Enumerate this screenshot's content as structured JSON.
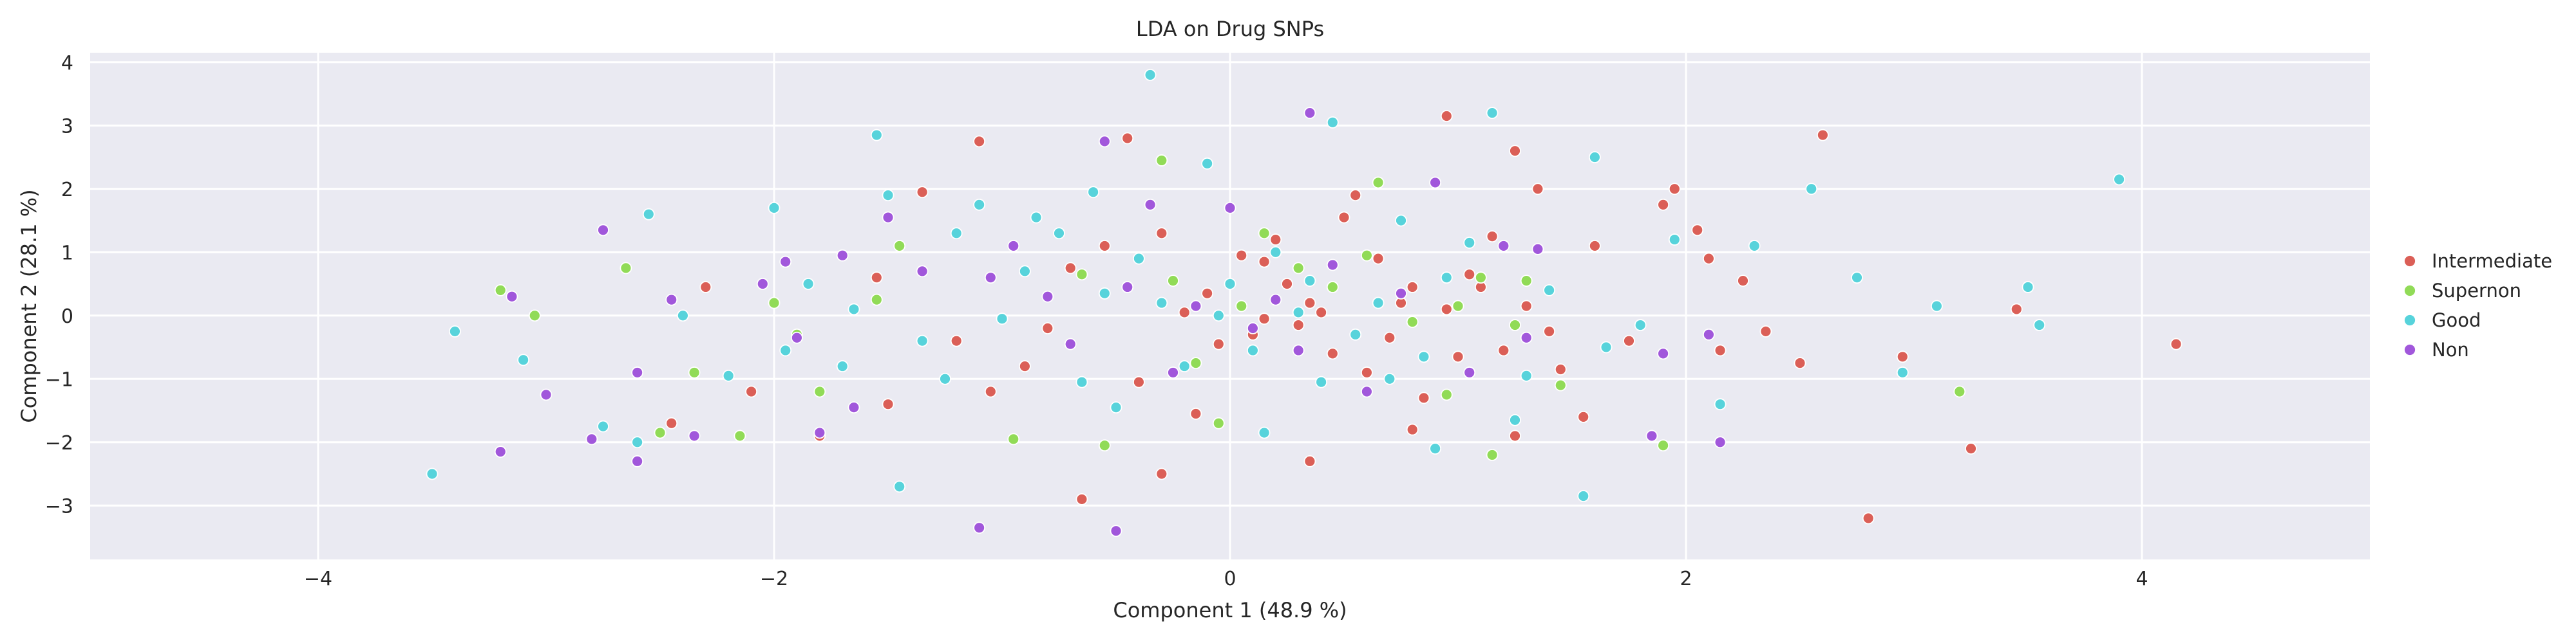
{
  "chart_data": {
    "type": "scatter",
    "title": "LDA on Drug SNPs",
    "xlabel": "Component 1 (48.9 %)",
    "ylabel": "Component 2 (28.1 %)",
    "xlim": [
      -5.0,
      5.0
    ],
    "ylim": [
      -3.85,
      4.15
    ],
    "xticks": [
      -4,
      -2,
      0,
      2,
      4
    ],
    "yticks": [
      -3,
      -2,
      -1,
      0,
      1,
      2,
      3,
      4
    ],
    "xtick_labels": [
      "−4",
      "−2",
      "0",
      "2",
      "4"
    ],
    "ytick_labels": [
      "−3",
      "−2",
      "−1",
      "0",
      "1",
      "2",
      "3",
      "4"
    ],
    "grid": true,
    "background": "#eaeaf2",
    "legend_position": "right",
    "series": [
      {
        "name": "Intermediate",
        "color": "#db5f57",
        "points": [
          [
            -1.35,
            1.95
          ],
          [
            -1.1,
            2.75
          ],
          [
            -0.45,
            2.8
          ],
          [
            -0.55,
            1.1
          ],
          [
            -0.3,
            1.3
          ],
          [
            0.05,
            0.95
          ],
          [
            0.15,
            0.85
          ],
          [
            0.25,
            0.5
          ],
          [
            0.35,
            0.2
          ],
          [
            0.4,
            0.05
          ],
          [
            0.5,
            1.55
          ],
          [
            0.65,
            0.9
          ],
          [
            0.8,
            0.45
          ],
          [
            0.95,
            0.1
          ],
          [
            1.05,
            0.65
          ],
          [
            1.15,
            1.25
          ],
          [
            1.25,
            2.6
          ],
          [
            1.35,
            2.0
          ],
          [
            1.6,
            1.1
          ],
          [
            1.9,
            1.75
          ],
          [
            1.95,
            2.0
          ],
          [
            2.05,
            1.35
          ],
          [
            2.1,
            0.9
          ],
          [
            2.25,
            0.55
          ],
          [
            2.35,
            -0.25
          ],
          [
            2.5,
            -0.75
          ],
          [
            2.6,
            2.85
          ],
          [
            2.95,
            -0.65
          ],
          [
            3.25,
            -2.1
          ],
          [
            3.45,
            0.1
          ],
          [
            4.15,
            -0.45
          ],
          [
            2.8,
            -3.2
          ],
          [
            1.55,
            -1.6
          ],
          [
            1.25,
            -1.9
          ],
          [
            0.8,
            -1.8
          ],
          [
            0.35,
            -2.3
          ],
          [
            -0.65,
            -2.9
          ],
          [
            -0.3,
            -2.5
          ],
          [
            -1.05,
            -1.2
          ],
          [
            -1.5,
            -1.4
          ],
          [
            -1.8,
            -1.9
          ],
          [
            -2.1,
            -1.2
          ],
          [
            -2.45,
            -1.7
          ],
          [
            -2.3,
            0.45
          ],
          [
            -1.55,
            0.6
          ],
          [
            -1.2,
            -0.4
          ],
          [
            -0.8,
            -0.2
          ],
          [
            -0.2,
            0.05
          ],
          [
            0.1,
            -0.3
          ],
          [
            0.45,
            -0.6
          ],
          [
            0.6,
            -0.9
          ],
          [
            0.75,
            0.2
          ],
          [
            0.95,
            3.15
          ],
          [
            0.15,
            -0.05
          ],
          [
            -0.05,
            -0.45
          ],
          [
            1.0,
            -0.65
          ],
          [
            1.1,
            0.45
          ],
          [
            1.4,
            -0.25
          ],
          [
            1.75,
            -0.4
          ],
          [
            0.55,
            1.9
          ],
          [
            -0.1,
            0.35
          ],
          [
            0.2,
            1.2
          ],
          [
            0.85,
            -1.3
          ],
          [
            -0.7,
            0.75
          ],
          [
            -0.9,
            -0.8
          ],
          [
            1.3,
            0.15
          ],
          [
            1.45,
            -0.85
          ],
          [
            0.3,
            -0.15
          ],
          [
            -0.4,
            -1.05
          ],
          [
            -0.15,
            -1.55
          ],
          [
            2.15,
            -0.55
          ],
          [
            0.7,
            -0.35
          ],
          [
            1.2,
            -0.55
          ]
        ]
      },
      {
        "name": "Supernon",
        "color": "#91db57",
        "points": [
          [
            -3.2,
            0.4
          ],
          [
            -3.05,
            0.0
          ],
          [
            -2.65,
            0.75
          ],
          [
            -2.5,
            -1.85
          ],
          [
            -2.35,
            -0.9
          ],
          [
            -2.15,
            -1.9
          ],
          [
            -2.0,
            0.2
          ],
          [
            -1.9,
            -0.3
          ],
          [
            -1.8,
            -1.2
          ],
          [
            -1.55,
            0.25
          ],
          [
            -1.45,
            1.1
          ],
          [
            -0.95,
            -1.95
          ],
          [
            -0.65,
            0.65
          ],
          [
            -0.55,
            -2.05
          ],
          [
            -0.3,
            2.45
          ],
          [
            -0.25,
            0.55
          ],
          [
            -0.05,
            -1.7
          ],
          [
            0.05,
            0.15
          ],
          [
            0.3,
            0.75
          ],
          [
            0.45,
            0.45
          ],
          [
            0.65,
            2.1
          ],
          [
            0.8,
            -0.1
          ],
          [
            0.95,
            -1.25
          ],
          [
            1.0,
            0.15
          ],
          [
            1.1,
            0.6
          ],
          [
            1.15,
            -2.2
          ],
          [
            1.25,
            -0.15
          ],
          [
            1.3,
            0.55
          ],
          [
            1.9,
            -2.05
          ],
          [
            3.2,
            -1.2
          ],
          [
            0.6,
            0.95
          ],
          [
            -0.15,
            -0.75
          ],
          [
            0.15,
            1.3
          ],
          [
            1.45,
            -1.1
          ]
        ]
      },
      {
        "name": "Good",
        "color": "#57d3db",
        "points": [
          [
            -3.5,
            -2.5
          ],
          [
            -3.4,
            -0.25
          ],
          [
            -3.1,
            -0.7
          ],
          [
            -2.75,
            -1.75
          ],
          [
            -2.55,
            1.6
          ],
          [
            -2.4,
            0.0
          ],
          [
            -2.2,
            -0.95
          ],
          [
            -2.0,
            1.7
          ],
          [
            -1.95,
            -0.55
          ],
          [
            -1.85,
            0.5
          ],
          [
            -1.7,
            -0.8
          ],
          [
            -1.55,
            2.85
          ],
          [
            -1.5,
            1.9
          ],
          [
            -1.45,
            -2.7
          ],
          [
            -1.35,
            -0.4
          ],
          [
            -1.2,
            1.3
          ],
          [
            -1.1,
            1.75
          ],
          [
            -1.0,
            -0.05
          ],
          [
            -0.9,
            0.7
          ],
          [
            -0.75,
            1.3
          ],
          [
            -0.65,
            -1.05
          ],
          [
            -0.6,
            1.95
          ],
          [
            -0.5,
            -1.45
          ],
          [
            -0.35,
            3.8
          ],
          [
            -0.3,
            0.2
          ],
          [
            -0.2,
            -0.8
          ],
          [
            -0.1,
            2.4
          ],
          [
            0.0,
            0.5
          ],
          [
            0.1,
            -0.55
          ],
          [
            0.2,
            1.0
          ],
          [
            0.3,
            0.05
          ],
          [
            0.4,
            -1.05
          ],
          [
            0.45,
            3.05
          ],
          [
            0.55,
            -0.3
          ],
          [
            0.65,
            0.2
          ],
          [
            0.75,
            1.5
          ],
          [
            0.85,
            -0.65
          ],
          [
            0.95,
            0.6
          ],
          [
            1.05,
            1.15
          ],
          [
            1.15,
            3.2
          ],
          [
            1.25,
            -1.65
          ],
          [
            1.4,
            0.4
          ],
          [
            1.55,
            -2.85
          ],
          [
            1.6,
            2.5
          ],
          [
            1.65,
            -0.5
          ],
          [
            1.8,
            -0.15
          ],
          [
            1.95,
            1.2
          ],
          [
            2.15,
            -1.4
          ],
          [
            2.3,
            1.1
          ],
          [
            2.55,
            2.0
          ],
          [
            2.75,
            0.6
          ],
          [
            2.95,
            -0.9
          ],
          [
            3.1,
            0.15
          ],
          [
            3.5,
            0.45
          ],
          [
            3.55,
            -0.15
          ],
          [
            3.9,
            2.15
          ],
          [
            -0.85,
            1.55
          ],
          [
            -1.25,
            -1.0
          ],
          [
            0.15,
            -1.85
          ],
          [
            0.9,
            -2.1
          ],
          [
            -0.4,
            0.9
          ],
          [
            1.3,
            -0.95
          ],
          [
            -1.65,
            0.1
          ],
          [
            -2.6,
            -2.0
          ],
          [
            -0.55,
            0.35
          ],
          [
            0.35,
            0.55
          ],
          [
            -0.05,
            0.0
          ],
          [
            0.7,
            -1.0
          ]
        ]
      },
      {
        "name": "Non",
        "color": "#a157db",
        "points": [
          [
            -3.2,
            -2.15
          ],
          [
            -3.15,
            0.3
          ],
          [
            -3.0,
            -1.25
          ],
          [
            -2.8,
            -1.95
          ],
          [
            -2.75,
            1.35
          ],
          [
            -2.6,
            -2.3
          ],
          [
            -2.6,
            -0.9
          ],
          [
            -2.45,
            0.25
          ],
          [
            -2.35,
            -1.9
          ],
          [
            -2.05,
            0.5
          ],
          [
            -1.95,
            0.85
          ],
          [
            -1.8,
            -1.85
          ],
          [
            -1.7,
            0.95
          ],
          [
            -1.65,
            -1.45
          ],
          [
            -1.5,
            1.55
          ],
          [
            -1.35,
            0.7
          ],
          [
            -1.1,
            -3.35
          ],
          [
            -1.05,
            0.6
          ],
          [
            -0.95,
            1.1
          ],
          [
            -0.7,
            -0.45
          ],
          [
            -0.55,
            2.75
          ],
          [
            -0.5,
            -3.4
          ],
          [
            -0.45,
            0.45
          ],
          [
            -0.35,
            1.75
          ],
          [
            -0.25,
            -0.9
          ],
          [
            -0.15,
            0.15
          ],
          [
            0.0,
            1.7
          ],
          [
            0.1,
            -0.2
          ],
          [
            0.2,
            0.25
          ],
          [
            0.35,
            3.2
          ],
          [
            0.45,
            0.8
          ],
          [
            0.6,
            -1.2
          ],
          [
            0.75,
            0.35
          ],
          [
            0.9,
            2.1
          ],
          [
            1.05,
            -0.9
          ],
          [
            1.2,
            1.1
          ],
          [
            1.3,
            -0.35
          ],
          [
            1.35,
            1.05
          ],
          [
            1.85,
            -1.9
          ],
          [
            1.9,
            -0.6
          ],
          [
            2.1,
            -0.3
          ],
          [
            2.15,
            -2.0
          ],
          [
            -1.9,
            -0.35
          ],
          [
            0.3,
            -0.55
          ],
          [
            -0.8,
            0.3
          ]
        ]
      }
    ]
  }
}
